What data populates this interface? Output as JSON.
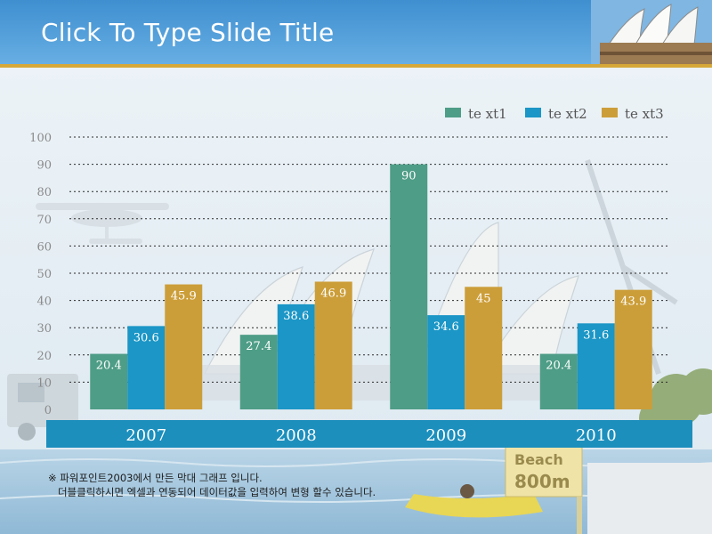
{
  "slide": {
    "title": "Click To Type Slide Title"
  },
  "background": {
    "sign_line1": "Beach",
    "sign_line2": "800m"
  },
  "note": {
    "line1": "※ 파워포인트2003에서 만든 막대 그래프 입니다.",
    "line2": "   더블클릭하시면 엑셀과 연동되어 데이터값을 입력하여 변형 할수 있습니다."
  },
  "colors": {
    "series": [
      "#4e9d86",
      "#1b96c6",
      "#cc9e39"
    ],
    "category_band": "#1c8fbd",
    "header_rule": "#d6a838"
  },
  "chart_data": {
    "type": "bar",
    "categories": [
      "2007",
      "2008",
      "2009",
      "2010"
    ],
    "series": [
      {
        "name": "te xt1",
        "values": [
          20.4,
          27.4,
          90,
          20.4
        ]
      },
      {
        "name": "te xt2",
        "values": [
          30.6,
          38.6,
          34.6,
          31.6
        ]
      },
      {
        "name": "te xt3",
        "values": [
          45.9,
          46.9,
          45,
          43.9
        ]
      }
    ],
    "data_labels": [
      [
        "20.4",
        "27.4",
        "90",
        "20.4"
      ],
      [
        "30.6",
        "38.6",
        "34.6",
        "31.6"
      ],
      [
        "45.9",
        "46.9",
        "45",
        "43.9"
      ]
    ],
    "ylim": [
      0,
      100
    ],
    "yticks": [
      "0",
      "10",
      "20",
      "30",
      "40",
      "50",
      "60",
      "70",
      "80",
      "90",
      "100"
    ],
    "grid": "dotted horizontal",
    "legend": "top-right"
  }
}
